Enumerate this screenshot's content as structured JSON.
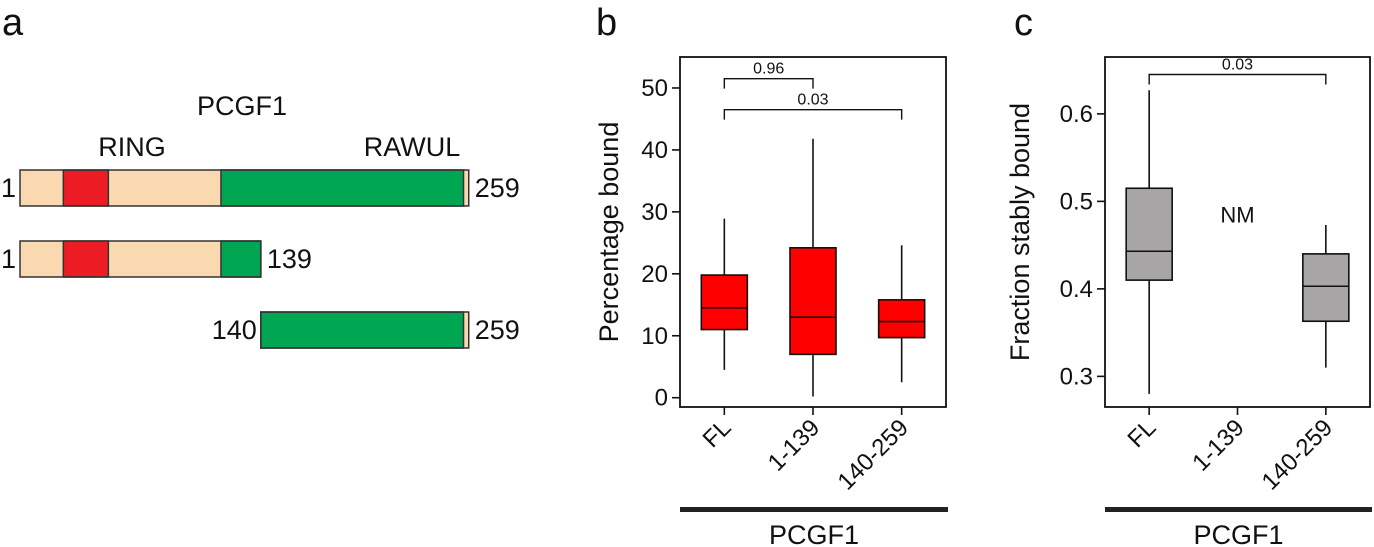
{
  "panel_a": {
    "letter": "a",
    "protein": "PCGF1",
    "domain_labels": {
      "ring": "RING",
      "rawul": "RAWUL"
    },
    "colors": {
      "backbone": "#fad8b0",
      "ring": "#ec1c24",
      "rawul": "#00a651",
      "outline": "#333333"
    },
    "constructs": [
      {
        "start": 1,
        "end": 259,
        "start_label": "1",
        "end_label": "259"
      },
      {
        "start": 1,
        "end": 139,
        "start_label": "1",
        "end_label": "139"
      },
      {
        "start": 140,
        "end": 259,
        "start_label": "140",
        "end_label": "259"
      }
    ],
    "domains": {
      "ring": {
        "start": 26,
        "end": 51
      },
      "rawul": {
        "start": 117,
        "end": 256
      }
    }
  },
  "chart_data": [
    {
      "panel": "b",
      "type": "box",
      "ylabel": "Percentage bound",
      "group_label": "PCGF1",
      "ylim": [
        -1.5,
        55
      ],
      "yticks": [
        0,
        10,
        20,
        30,
        40,
        50
      ],
      "categories": [
        "FL",
        "1-139",
        "140-259"
      ],
      "box_color": "#ff0000",
      "boxes": [
        {
          "category": "FL",
          "min": 4.5,
          "q1": 11,
          "median": 14.5,
          "q3": 19.8,
          "max": 28.9
        },
        {
          "category": "1-139",
          "min": 0.2,
          "q1": 7,
          "median": 13,
          "q3": 24.2,
          "max": 41.8
        },
        {
          "category": "140-259",
          "min": 2.5,
          "q1": 9.7,
          "median": 12.3,
          "q3": 15.8,
          "max": 24.6
        }
      ],
      "comparisons": [
        {
          "from": "FL",
          "to": "1-139",
          "label": "0.96",
          "y": 51.5
        },
        {
          "from": "FL",
          "to": "140-259",
          "label": "0.03",
          "y": 46.5
        }
      ]
    },
    {
      "panel": "c",
      "type": "box",
      "ylabel": "Fraction stably bound",
      "group_label": "PCGF1",
      "ylim": [
        0.265,
        0.665
      ],
      "yticks": [
        0.3,
        0.4,
        0.5,
        0.6
      ],
      "categories": [
        "FL",
        "1-139",
        "140-259"
      ],
      "box_color": "#a7a5a5",
      "boxes": [
        {
          "category": "FL",
          "min": 0.28,
          "q1": 0.41,
          "median": 0.443,
          "q3": 0.515,
          "max": 0.627
        },
        {
          "category": "140-259",
          "min": 0.31,
          "q1": 0.363,
          "median": 0.403,
          "q3": 0.44,
          "max": 0.473
        }
      ],
      "annotations": [
        {
          "category": "1-139",
          "text": "NM",
          "y": 0.485
        }
      ],
      "comparisons": [
        {
          "from": "FL",
          "to": "140-259",
          "label": "0.03",
          "y": 0.645
        }
      ]
    }
  ]
}
